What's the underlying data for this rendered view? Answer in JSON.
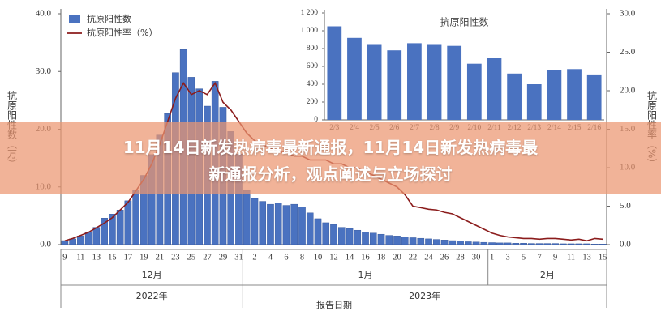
{
  "overlay_title": "11月14日新发热病毒最新通报，11月14日新发热病毒最新通报分析，观点阐述与立场探讨",
  "chart_data": [
    {
      "type": "bar",
      "y_label": "抗原阳性数（万）",
      "y2_label": "抗原阳性率（%）",
      "x_label": "报告日期",
      "month_labels": [
        "12月",
        "1月",
        "2月"
      ],
      "year_labels": [
        "2022年",
        "2023年"
      ],
      "categories": [
        "9",
        null,
        "11",
        null,
        "13",
        null,
        "15",
        null,
        "17",
        null,
        "19",
        null,
        "21",
        null,
        "23",
        null,
        "25",
        null,
        "27",
        null,
        "29",
        null,
        "31",
        null,
        "2",
        null,
        "4",
        null,
        "6",
        null,
        "8",
        null,
        "10",
        null,
        "12",
        null,
        "14",
        null,
        "16",
        null,
        "18",
        null,
        "20",
        null,
        "22",
        null,
        "24",
        null,
        "26",
        null,
        "28",
        null,
        "30",
        null,
        "1",
        null,
        "3",
        null,
        "5",
        null,
        "7",
        null,
        "9",
        null,
        "11",
        null,
        "13",
        null,
        "15"
      ],
      "series": [
        {
          "name": "抗原阳性数",
          "type": "bar",
          "color": "#4a72c0",
          "values": [
            0.7,
            1.0,
            1.5,
            2.2,
            3.0,
            4.6,
            5.3,
            6.0,
            7.6,
            9.5,
            12.0,
            15.6,
            19.0,
            22.7,
            29.8,
            33.8,
            29.0,
            27.0,
            24.0,
            28.3,
            23.8,
            19.6,
            15.7,
            9.4,
            8.0,
            7.5,
            7.0,
            7.2,
            6.8,
            7.0,
            6.5,
            5.5,
            4.5,
            3.8,
            3.5,
            3.0,
            2.8,
            2.5,
            2.2,
            2.0,
            1.8,
            1.6,
            1.5,
            1.3,
            1.2,
            1.1,
            1.0,
            0.9,
            0.8,
            0.7,
            0.6,
            0.5,
            0.45,
            0.4,
            0.35,
            0.3,
            0.3,
            0.25,
            0.25,
            0.2,
            0.2,
            0.2,
            0.2,
            0.15,
            0.15,
            0.15,
            0.15,
            0.1,
            0.1
          ]
        },
        {
          "name": "抗原阳性率（%）",
          "type": "line",
          "axis": "y2",
          "color": "#8b1c1c",
          "values": [
            0.5,
            0.8,
            1.2,
            1.6,
            2.2,
            2.8,
            3.5,
            4.5,
            5.5,
            7.0,
            8.5,
            10.5,
            13.0,
            16.0,
            19.0,
            21.0,
            19.5,
            20.0,
            19.5,
            21.0,
            18.5,
            17.5,
            16.0,
            14.5,
            13.5,
            13.0,
            12.5,
            12.0,
            12.0,
            11.5,
            11.5,
            11.0,
            11.0,
            11.0,
            10.5,
            10.5,
            10.0,
            10.0,
            9.5,
            9.0,
            8.5,
            8.0,
            7.5,
            6.5,
            5.0,
            4.8,
            4.6,
            4.5,
            4.2,
            4.0,
            3.5,
            3.0,
            2.5,
            2.0,
            1.5,
            1.2,
            1.0,
            0.9,
            0.8,
            0.8,
            0.7,
            0.8,
            0.8,
            0.7,
            0.6,
            0.7,
            0.5,
            0.8,
            0.7
          ]
        }
      ],
      "ylim": [
        0,
        40
      ],
      "yticks": [
        {
          "value": 0,
          "label": "0.0"
        },
        {
          "value": 10,
          "label": "10.0"
        },
        {
          "value": 20,
          "label": "20.0"
        },
        {
          "value": 30,
          "label": "30.0"
        },
        {
          "value": 40,
          "label": "40.0"
        }
      ],
      "y2lim": [
        0,
        30
      ],
      "y2ticks": [
        {
          "value": 0,
          "label": "0.0"
        },
        {
          "value": 5,
          "label": "5.0"
        },
        {
          "value": 10,
          "label": "10.0"
        },
        {
          "value": 15,
          "label": "15.0"
        },
        {
          "value": 20,
          "label": "20.0"
        },
        {
          "value": 25,
          "label": "25.0"
        },
        {
          "value": 30,
          "label": "30.0"
        }
      ],
      "legend": "upper left"
    },
    {
      "type": "bar",
      "title": "抗原阳性数",
      "categories": [
        "2/3",
        "2/4",
        "2/5",
        "2/6",
        "2/7",
        "2/8",
        "2/9",
        "2/10",
        "2/11",
        "2/12",
        "2/13",
        "2/14",
        "2/15",
        "2/16"
      ],
      "values": [
        1050,
        920,
        850,
        780,
        860,
        850,
        830,
        630,
        700,
        520,
        400,
        560,
        570,
        510
      ],
      "color": "#4a72c0",
      "ylim": [
        0,
        1200
      ],
      "yticks": [
        0,
        200,
        400,
        600,
        800,
        {
          "value": 1000,
          "label": "1 000"
        },
        {
          "value": 1200,
          "label": "1 200"
        }
      ]
    }
  ]
}
